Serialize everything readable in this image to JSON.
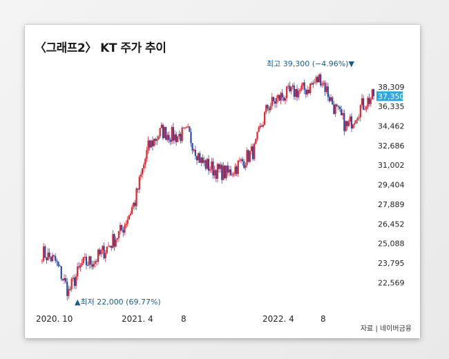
{
  "chart_data": {
    "type": "candlestick",
    "title": "〈그래프2〉 KT 주가 추이",
    "x_tick_labels": [
      "2020. 10",
      "2021. 4",
      "8",
      "2022. 4",
      "8"
    ],
    "y_tick_labels": [
      "38,309",
      "37,350",
      "36,335",
      "34,462",
      "32,686",
      "31,002",
      "29,404",
      "27,889",
      "26,452",
      "25,088",
      "23,795",
      "22,569"
    ],
    "y_scale": "log",
    "ylim": [
      21800,
      39600
    ],
    "current_price": 37350,
    "series": [
      {
        "period": "2020.09",
        "price": 24500
      },
      {
        "period": "2020.10",
        "price": 23900
      },
      {
        "period": "2020.11",
        "price": 22000
      },
      {
        "period": "2020.12",
        "price": 23700
      },
      {
        "period": "2021.01",
        "price": 24000
      },
      {
        "period": "2021.02",
        "price": 24900
      },
      {
        "period": "2021.03",
        "price": 26000
      },
      {
        "period": "2021.04",
        "price": 28100
      },
      {
        "period": "2021.05",
        "price": 32500
      },
      {
        "period": "2021.06",
        "price": 34000
      },
      {
        "period": "2021.07",
        "price": 33500
      },
      {
        "period": "2021.08",
        "price": 33800
      },
      {
        "period": "2021.09",
        "price": 31300
      },
      {
        "period": "2021.10",
        "price": 30600
      },
      {
        "period": "2021.11",
        "price": 30300
      },
      {
        "period": "2021.12",
        "price": 31200
      },
      {
        "period": "2022.01",
        "price": 32300
      },
      {
        "period": "2022.02",
        "price": 36300
      },
      {
        "period": "2022.03",
        "price": 37300
      },
      {
        "period": "2022.04",
        "price": 37800
      },
      {
        "period": "2022.05",
        "price": 38100
      },
      {
        "period": "2022.06",
        "price": 39300
      },
      {
        "period": "2022.07",
        "price": 36300
      },
      {
        "period": "2022.08",
        "price": 34300
      },
      {
        "period": "2022.09",
        "price": 36300
      },
      {
        "period": "2022.10",
        "price": 37350
      }
    ],
    "annotations": {
      "high": "최고 39,300 (−4.96%)▼",
      "low": "▲최저 22,000 (69.77%)"
    },
    "colors": {
      "up": "#e8202a",
      "down": "#2a4aa8",
      "current_label_bg": "#29a9e0",
      "annotation": "#1a5c8c"
    },
    "source": "자료 | 네이버금융"
  }
}
